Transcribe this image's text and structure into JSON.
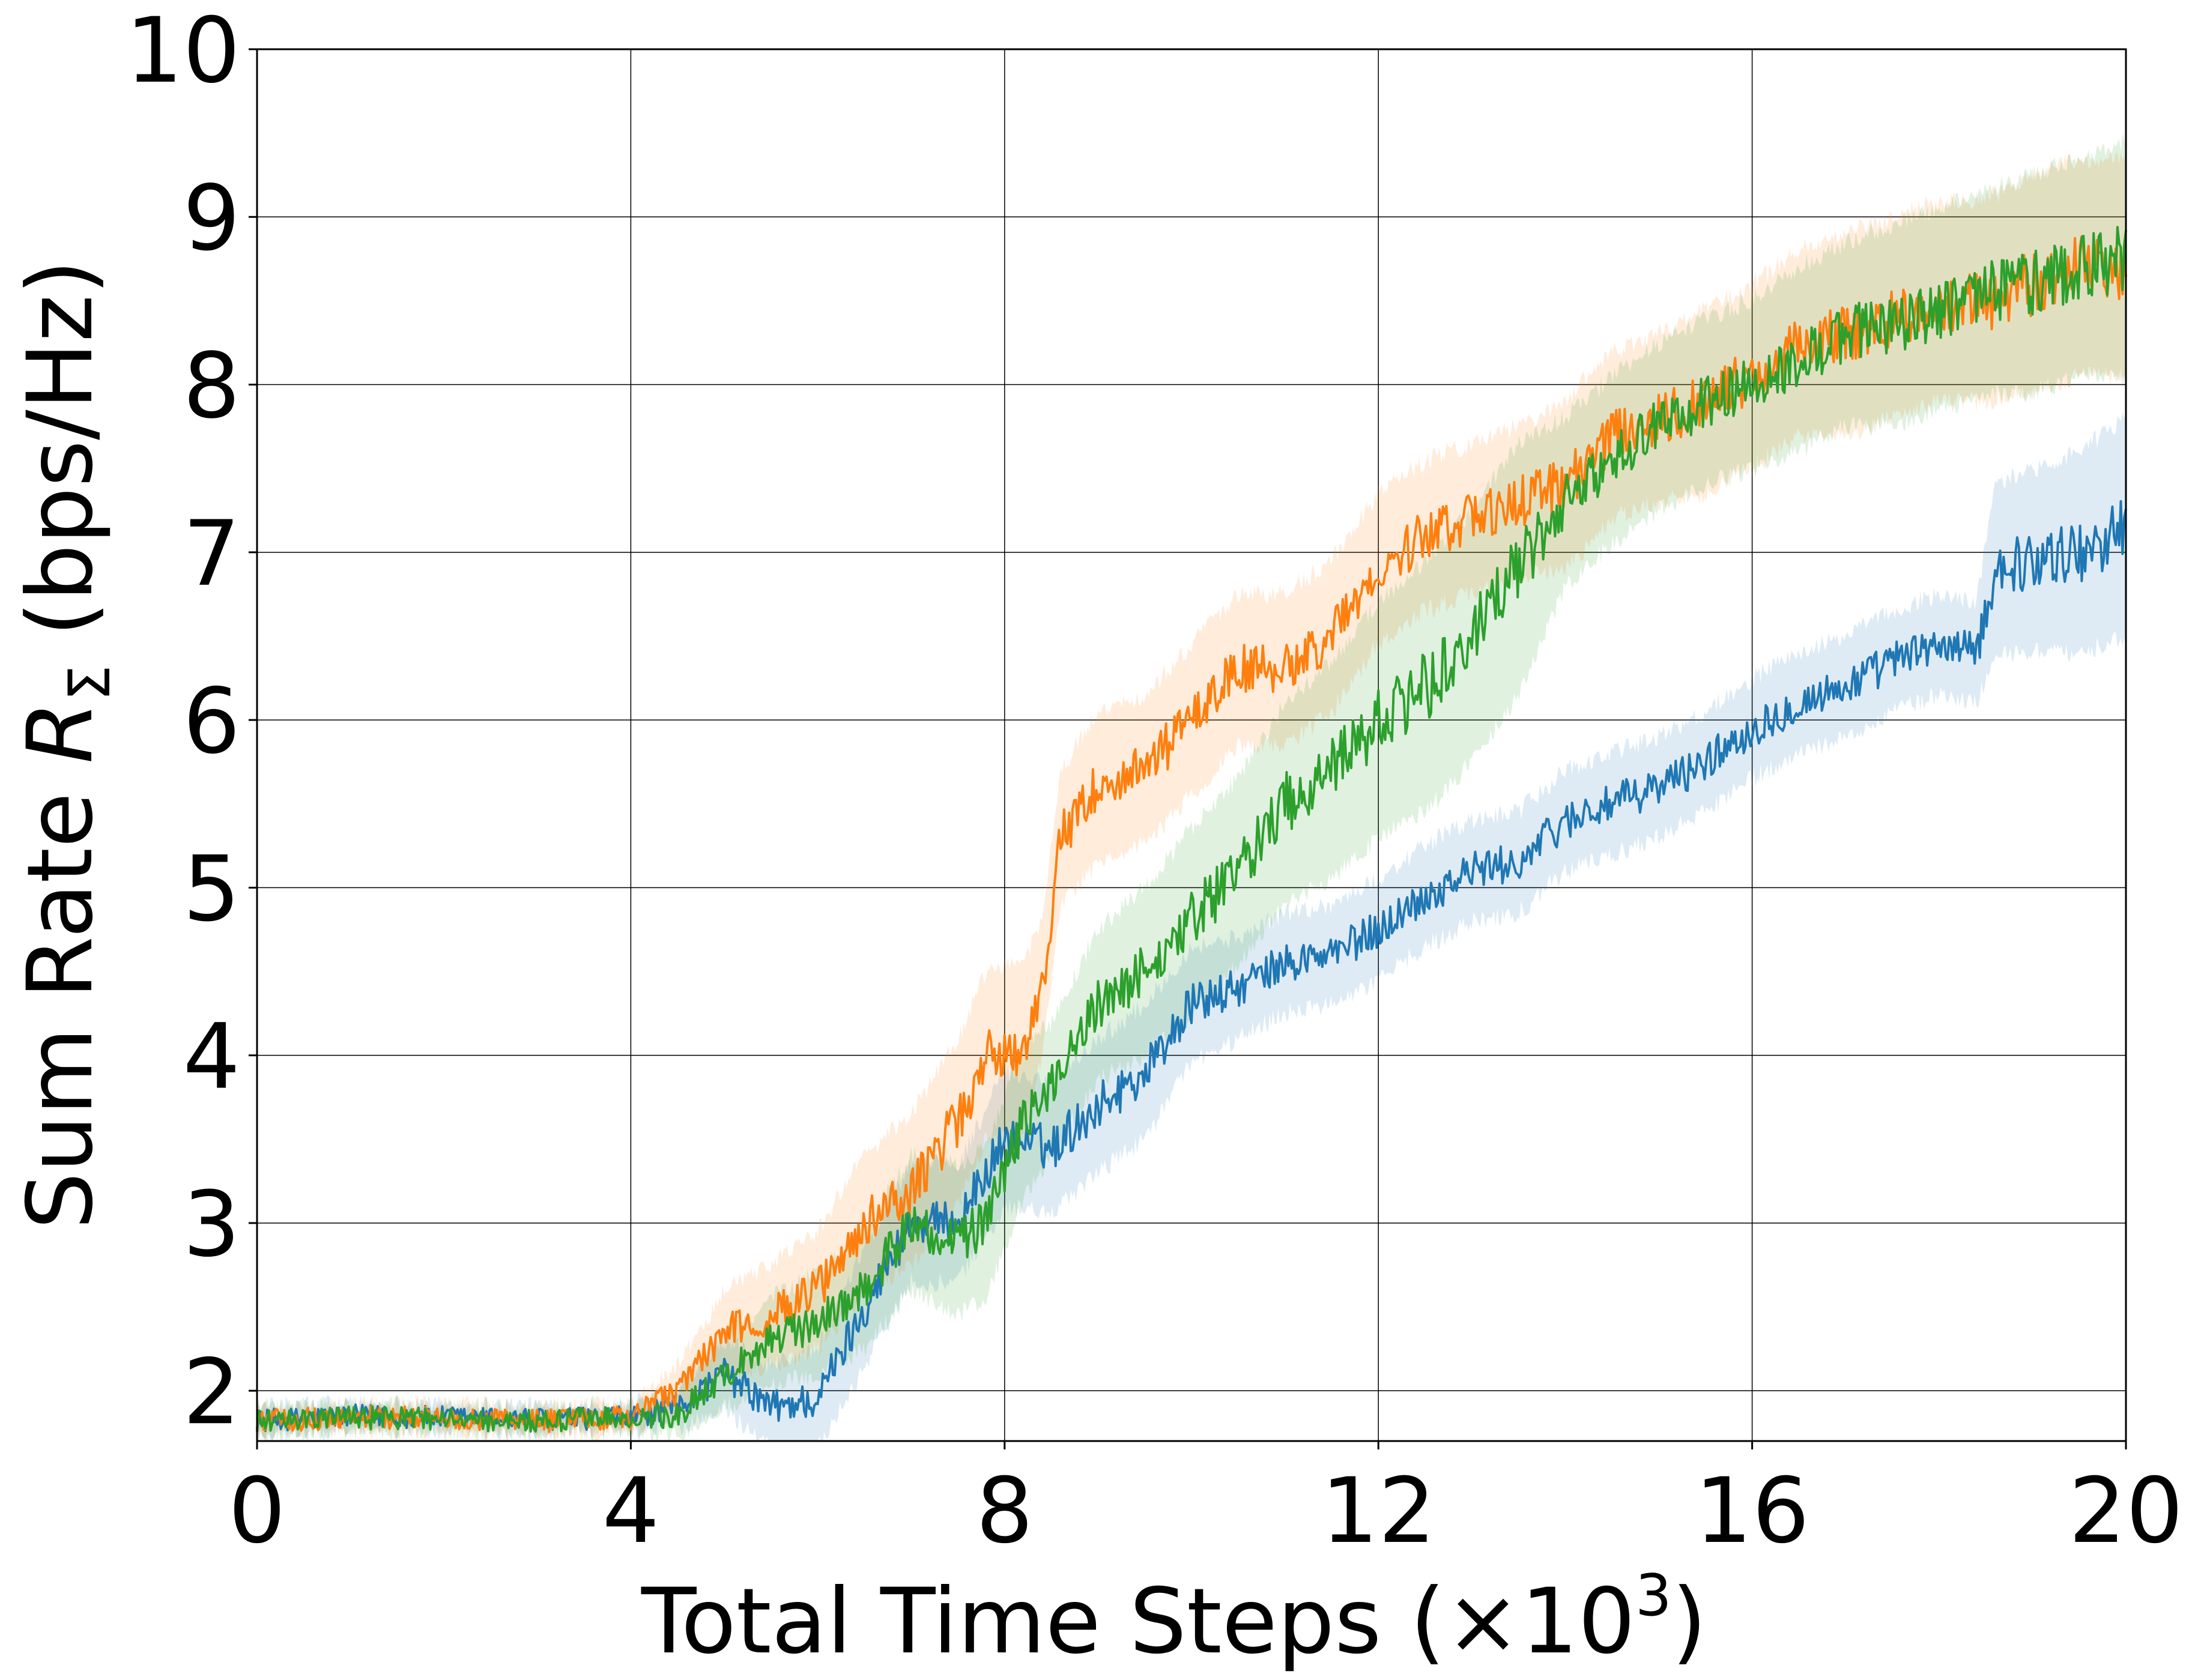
{
  "chart_data": {
    "type": "line",
    "title": "",
    "xlabel": "Total Time Steps (×10³)",
    "xlabel_parts": {
      "main": "Total Time Steps (×10",
      "sup": "3",
      "close": ")"
    },
    "ylabel": "Sum Rate R_Σ (bps/Hz)",
    "ylabel_parts": {
      "pre": "Sum Rate ",
      "var": "R",
      "sub": "Σ",
      "post": " (bps/Hz)"
    },
    "xlim": [
      0,
      20
    ],
    "ylim": [
      1.7,
      10
    ],
    "xticks": [
      "0",
      "4",
      "8",
      "12",
      "16",
      "20"
    ],
    "yticks": [
      "2",
      "3",
      "4",
      "5",
      "6",
      "7",
      "8",
      "9",
      "10"
    ],
    "grid": true,
    "legend": "none",
    "series": [
      {
        "color": "#1f77b4",
        "band_color": "#1f77b4",
        "x": [
          0,
          1,
          2,
          3,
          4,
          4.5,
          5,
          5.5,
          6,
          6.5,
          7,
          7.5,
          8,
          8.5,
          9,
          9.5,
          10,
          10.5,
          11,
          11.5,
          12,
          12.5,
          13,
          13.5,
          14,
          14.5,
          15,
          15.5,
          16,
          16.5,
          17,
          17.5,
          18,
          18.4,
          18.6,
          19,
          19.5,
          20
        ],
        "y": [
          1.82,
          1.85,
          1.84,
          1.83,
          1.84,
          1.9,
          2.1,
          1.9,
          1.95,
          2.5,
          3.0,
          3.0,
          3.5,
          3.45,
          3.7,
          3.9,
          4.3,
          4.4,
          4.55,
          4.6,
          4.75,
          4.95,
          5.1,
          5.15,
          5.4,
          5.5,
          5.6,
          5.75,
          5.95,
          6.1,
          6.2,
          6.35,
          6.45,
          6.4,
          6.9,
          6.95,
          7.0,
          7.15
        ],
        "band_halfwidth": [
          0.08,
          0.08,
          0.08,
          0.08,
          0.08,
          0.12,
          0.2,
          0.25,
          0.3,
          0.35,
          0.35,
          0.35,
          0.4,
          0.4,
          0.4,
          0.4,
          0.35,
          0.3,
          0.3,
          0.3,
          0.3,
          0.3,
          0.3,
          0.3,
          0.3,
          0.3,
          0.3,
          0.3,
          0.3,
          0.3,
          0.3,
          0.3,
          0.3,
          0.3,
          0.5,
          0.55,
          0.6,
          0.65
        ]
      },
      {
        "color": "#ff7f0e",
        "band_color": "#ff7f0e",
        "x": [
          0,
          1,
          2,
          3,
          4,
          4.5,
          5,
          5.5,
          6,
          6.5,
          7,
          7.5,
          7.8,
          8.2,
          8.4,
          8.6,
          9,
          9.5,
          10,
          10.5,
          11,
          11.5,
          12,
          12.5,
          13,
          13.5,
          14,
          14.5,
          15,
          15.5,
          16,
          16.5,
          17,
          17.5,
          18,
          18.5,
          19,
          19.5,
          20
        ],
        "y": [
          1.82,
          1.84,
          1.84,
          1.82,
          1.84,
          2.0,
          2.35,
          2.45,
          2.6,
          3.0,
          3.2,
          3.6,
          4.0,
          4.05,
          4.4,
          5.3,
          5.6,
          5.7,
          6.0,
          6.3,
          6.3,
          6.5,
          6.9,
          7.1,
          7.2,
          7.3,
          7.4,
          7.7,
          7.8,
          7.9,
          8.05,
          8.25,
          8.3,
          8.4,
          8.5,
          8.5,
          8.6,
          8.7,
          8.7
        ],
        "band_halfwidth": [
          0.08,
          0.08,
          0.08,
          0.08,
          0.08,
          0.15,
          0.25,
          0.3,
          0.35,
          0.4,
          0.45,
          0.5,
          0.5,
          0.5,
          0.4,
          0.4,
          0.45,
          0.45,
          0.45,
          0.45,
          0.45,
          0.45,
          0.45,
          0.45,
          0.45,
          0.45,
          0.5,
          0.5,
          0.5,
          0.55,
          0.55,
          0.55,
          0.6,
          0.6,
          0.6,
          0.6,
          0.65,
          0.65,
          0.65
        ]
      },
      {
        "color": "#2ca02c",
        "band_color": "#2ca02c",
        "x": [
          0,
          1,
          2,
          3,
          4,
          4.5,
          5,
          5.5,
          6,
          6.5,
          7,
          7.5,
          7.8,
          8.2,
          8.5,
          9,
          9.5,
          10,
          10.5,
          11,
          11.5,
          12,
          12.5,
          13,
          13.5,
          14,
          14.5,
          15,
          15.5,
          16,
          16.5,
          17,
          17.5,
          18,
          18.5,
          19,
          19.5,
          20
        ],
        "y": [
          1.82,
          1.84,
          1.83,
          1.82,
          1.84,
          1.85,
          2.1,
          2.3,
          2.4,
          2.6,
          3.0,
          2.9,
          3.0,
          3.6,
          3.8,
          4.3,
          4.5,
          4.8,
          5.1,
          5.5,
          5.7,
          6.0,
          6.2,
          6.5,
          6.9,
          7.3,
          7.55,
          7.75,
          7.9,
          8.0,
          8.15,
          8.3,
          8.35,
          8.45,
          8.55,
          8.6,
          8.7,
          8.75
        ],
        "band_halfwidth": [
          0.08,
          0.08,
          0.08,
          0.08,
          0.08,
          0.12,
          0.2,
          0.25,
          0.3,
          0.35,
          0.4,
          0.45,
          0.45,
          0.45,
          0.4,
          0.45,
          0.5,
          0.55,
          0.55,
          0.6,
          0.65,
          0.7,
          0.75,
          0.75,
          0.75,
          0.5,
          0.5,
          0.5,
          0.5,
          0.5,
          0.55,
          0.55,
          0.6,
          0.6,
          0.6,
          0.65,
          0.65,
          0.7
        ]
      }
    ]
  }
}
